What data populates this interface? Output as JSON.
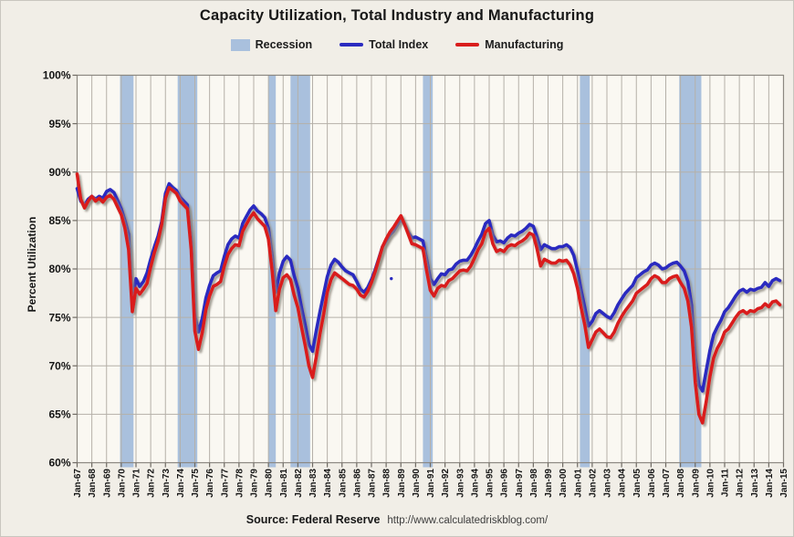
{
  "title": "Capacity Utilization, Total Industry and Manufacturing",
  "legend": [
    {
      "label": "Recession"
    },
    {
      "label": "Total Index"
    },
    {
      "label": "Manufacturing"
    }
  ],
  "source": {
    "label": "Source: Federal Reserve",
    "url": "http://www.calculatedriskblog.com/"
  },
  "colors": {
    "page_bg": "#f1eee7",
    "plot_bg": "#faf8f2",
    "gridline": "#b5b0a8",
    "plot_border": "#8c8881",
    "tick": "#6f6a63",
    "recession_band": "#a9c0dd",
    "total_index": "#2b2bc0",
    "manufacturing": "#d91d1d",
    "line_shadow": "#8e897f",
    "text": "#141414"
  },
  "chart_data": {
    "type": "line",
    "title": "Capacity Utilization, Total Industry and Manufacturing",
    "xlabel": "",
    "ylabel": "Percent Utilization",
    "ylim": [
      60,
      100
    ],
    "grid": true,
    "legend_position": "top",
    "y_tick_labels": [
      "100%",
      "95%",
      "90%",
      "85%",
      "80%",
      "75%",
      "70%",
      "65%",
      "60%"
    ],
    "y_tick_values": [
      100,
      95,
      90,
      85,
      80,
      75,
      70,
      65,
      60
    ],
    "x_tick_labels": [
      "Jan-67",
      "Jan-68",
      "Jan-69",
      "Jan-70",
      "Jan-71",
      "Jan-72",
      "Jan-73",
      "Jan-74",
      "Jan-75",
      "Jan-76",
      "Jan-77",
      "Jan-78",
      "Jan-79",
      "Jan-80",
      "Jan-81",
      "Jan-82",
      "Jan-83",
      "Jan-84",
      "Jan-85",
      "Jan-86",
      "Jan-87",
      "Jan-88",
      "Jan-89",
      "Jan-90",
      "Jan-91",
      "Jan-92",
      "Jan-93",
      "Jan-94",
      "Jan-95",
      "Jan-96",
      "Jan-97",
      "Jan-98",
      "Jan-99",
      "Jan-00",
      "Jan-01",
      "Jan-02",
      "Jan-03",
      "Jan-04",
      "Jan-05",
      "Jan-06",
      "Jan-07",
      "Jan-08",
      "Jan-09",
      "Jan-10",
      "Jan-11",
      "Jan-12",
      "Jan-13",
      "Jan-14",
      "Jan-15"
    ],
    "x_tick_year_start": 1967,
    "x_tick_year_end": 2015,
    "x_start": 1967.0,
    "x_step": 0.25,
    "recessions": [
      [
        1969.917,
        1970.833
      ],
      [
        1973.833,
        1975.167
      ],
      [
        1980.0,
        1980.5
      ],
      [
        1981.5,
        1982.833
      ],
      [
        1990.5,
        1991.167
      ],
      [
        2001.167,
        2001.833
      ],
      [
        2007.917,
        2009.417
      ]
    ],
    "series": [
      {
        "name": "Total Index",
        "color": "#2b2bc0",
        "values": [
          88.3,
          87.0,
          86.6,
          87.2,
          87.5,
          87.2,
          87.5,
          87.3,
          88.0,
          88.2,
          87.9,
          87.1,
          86.2,
          85.0,
          83.6,
          76.6,
          79.0,
          78.2,
          78.7,
          79.6,
          81.0,
          82.3,
          83.4,
          84.9,
          87.8,
          88.8,
          88.4,
          88.1,
          87.4,
          87.0,
          86.6,
          83.0,
          75.2,
          73.5,
          74.9,
          77.0,
          78.3,
          79.3,
          79.6,
          79.8,
          81.3,
          82.5,
          83.1,
          83.4,
          83.2,
          84.7,
          85.4,
          86.1,
          86.5,
          86.0,
          85.7,
          85.3,
          84.2,
          81.4,
          77.6,
          79.6,
          80.8,
          81.3,
          80.9,
          79.3,
          78.0,
          76.0,
          74.2,
          72.2,
          71.5,
          73.6,
          75.6,
          77.4,
          79.2,
          80.4,
          81.0,
          80.7,
          80.2,
          79.8,
          79.6,
          79.4,
          78.7,
          77.9,
          77.6,
          78.1,
          78.9,
          79.9,
          81.1,
          82.3,
          82.9,
          83.5,
          83.9,
          84.5,
          85.2,
          84.6,
          83.8,
          83.2,
          83.3,
          83.1,
          82.9,
          81.0,
          79.0,
          78.4,
          79.0,
          79.5,
          79.4,
          79.9,
          80.0,
          80.5,
          80.8,
          80.9,
          80.9,
          81.4,
          82.1,
          82.9,
          83.6,
          84.7,
          85.0,
          83.5,
          82.8,
          82.9,
          82.7,
          83.2,
          83.5,
          83.4,
          83.7,
          83.9,
          84.2,
          84.6,
          84.4,
          83.3,
          82.0,
          82.5,
          82.3,
          82.1,
          82.1,
          82.3,
          82.3,
          82.5,
          82.2,
          81.4,
          79.8,
          77.8,
          76.0,
          74.1,
          74.6,
          75.4,
          75.7,
          75.4,
          75.1,
          74.9,
          75.5,
          76.3,
          76.9,
          77.5,
          77.9,
          78.3,
          79.1,
          79.4,
          79.7,
          79.9,
          80.4,
          80.6,
          80.4,
          80.0,
          80.1,
          80.4,
          80.6,
          80.7,
          80.3,
          79.8,
          78.7,
          76.3,
          70.9,
          68.0,
          67.4,
          69.5,
          71.6,
          73.2,
          74.0,
          74.7,
          75.6,
          76.0,
          76.6,
          77.2,
          77.7,
          77.9,
          77.6,
          77.9,
          77.8,
          78.0,
          78.1,
          78.6,
          78.2,
          78.8,
          79.0,
          78.8
        ]
      },
      {
        "name": "Manufacturing",
        "color": "#d91d1d",
        "values": [
          89.8,
          87.2,
          86.3,
          87.0,
          87.5,
          87.0,
          87.3,
          86.9,
          87.4,
          87.6,
          87.2,
          86.4,
          85.6,
          84.2,
          82.0,
          75.6,
          78.0,
          77.4,
          77.9,
          78.5,
          80.2,
          81.7,
          82.9,
          84.6,
          87.3,
          88.4,
          88.1,
          87.8,
          87.0,
          86.6,
          86.2,
          82.0,
          73.6,
          71.7,
          73.4,
          75.8,
          77.2,
          78.2,
          78.4,
          78.7,
          80.3,
          81.5,
          82.1,
          82.5,
          82.4,
          83.9,
          84.6,
          85.3,
          85.8,
          85.2,
          84.8,
          84.4,
          83.1,
          79.8,
          75.7,
          77.9,
          79.1,
          79.4,
          78.9,
          77.3,
          76.0,
          74.0,
          72.1,
          70.0,
          68.8,
          70.9,
          73.3,
          75.3,
          77.6,
          78.9,
          79.6,
          79.3,
          79.0,
          78.7,
          78.4,
          78.3,
          77.9,
          77.3,
          77.1,
          77.7,
          78.6,
          79.7,
          81.0,
          82.3,
          83.1,
          83.8,
          84.3,
          84.9,
          85.5,
          84.6,
          83.6,
          82.6,
          82.5,
          82.3,
          82.1,
          79.8,
          77.8,
          77.2,
          78.0,
          78.3,
          78.2,
          78.8,
          79.0,
          79.4,
          79.8,
          79.9,
          79.8,
          80.3,
          81.1,
          82.0,
          82.6,
          83.8,
          84.2,
          82.6,
          81.8,
          82.0,
          81.8,
          82.3,
          82.5,
          82.4,
          82.7,
          82.9,
          83.2,
          83.7,
          83.5,
          82.1,
          80.3,
          81.0,
          80.8,
          80.6,
          80.6,
          80.9,
          80.8,
          80.9,
          80.4,
          79.5,
          78.0,
          76.0,
          74.2,
          71.9,
          72.7,
          73.5,
          73.8,
          73.4,
          73.0,
          72.9,
          73.5,
          74.4,
          75.1,
          75.7,
          76.2,
          76.7,
          77.5,
          77.8,
          78.1,
          78.4,
          79.0,
          79.3,
          79.1,
          78.6,
          78.6,
          79.0,
          79.2,
          79.3,
          78.6,
          78.0,
          76.7,
          74.0,
          68.3,
          65.0,
          64.1,
          66.3,
          68.9,
          70.8,
          71.8,
          72.5,
          73.5,
          73.8,
          74.4,
          75.0,
          75.5,
          75.7,
          75.4,
          75.7,
          75.6,
          75.9,
          76.0,
          76.4,
          76.1,
          76.6,
          76.7,
          76.3
        ]
      }
    ],
    "artifacts": {
      "stray_dot": {
        "x_year": 1988.35,
        "value": 79.0
      }
    }
  }
}
